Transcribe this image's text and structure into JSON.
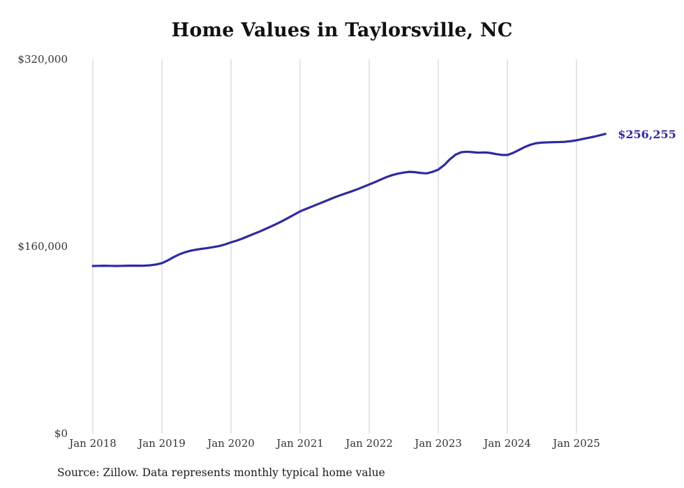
{
  "title": "Home Values in Taylorsville, NC",
  "source_note": "Source: Zillow. Data represents monthly typical home value",
  "chart_data": {
    "type": "line",
    "title": "Home Values in Taylorsville, NC",
    "x_start_month": "Jan 2018",
    "x_tick_labels": [
      "Jan 2018",
      "Jan 2019",
      "Jan 2020",
      "Jan 2021",
      "Jan 2022",
      "Jan 2023",
      "Jan 2024",
      "Jan 2025"
    ],
    "y_ticks": [
      {
        "value": 0,
        "label": "$0"
      },
      {
        "value": 160000,
        "label": "$160,000"
      },
      {
        "value": 320000,
        "label": "$320,000"
      }
    ],
    "ylim": [
      0,
      320000
    ],
    "grid": "vertical-only",
    "legend": "none",
    "line_color": "#2e2b9f",
    "grid_color": "#cbcbcb",
    "end_label": "$256,255",
    "end_value": 256255,
    "series": [
      {
        "name": "Monthly typical home value",
        "values": [
          143300,
          143400,
          143500,
          143400,
          143300,
          143400,
          143500,
          143600,
          143500,
          143600,
          143900,
          144600,
          145700,
          148000,
          150800,
          153200,
          155000,
          156400,
          157300,
          158000,
          158700,
          159500,
          160400,
          161800,
          163500,
          165000,
          166800,
          168800,
          170800,
          172800,
          175000,
          177200,
          179500,
          182000,
          184600,
          187300,
          190000,
          192000,
          194000,
          196000,
          198000,
          200000,
          202000,
          203800,
          205500,
          207200,
          209000,
          211000,
          213000,
          215000,
          217200,
          219300,
          221000,
          222300,
          223200,
          223800,
          223500,
          222800,
          222500,
          223800,
          225700,
          229500,
          234500,
          238500,
          240600,
          241000,
          240600,
          240200,
          240400,
          240000,
          239000,
          238300,
          238200,
          240000,
          242500,
          245000,
          247000,
          248300,
          248800,
          249000,
          249200,
          249300,
          249500,
          250000,
          250800,
          251800,
          252800,
          253800,
          255000,
          256255
        ]
      }
    ]
  }
}
